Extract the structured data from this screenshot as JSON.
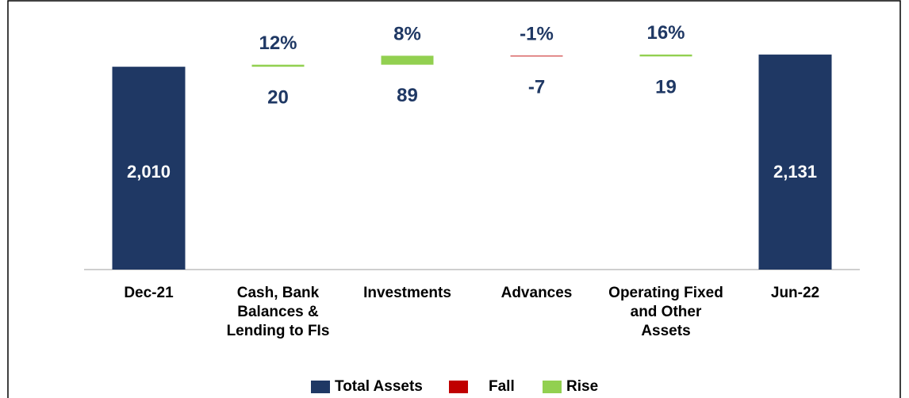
{
  "chart_data": {
    "type": "waterfall",
    "categories": [
      "Dec-21",
      "Cash, Bank Balances & Lending to FIs",
      "Investments",
      "Advances",
      "Operating Fixed and Other Assets",
      "Jun-22"
    ],
    "values": [
      2010,
      20,
      89,
      -7,
      19,
      2131
    ],
    "value_labels": [
      "2,010",
      "20",
      "89",
      "-7",
      "19",
      "2,131"
    ],
    "percent_labels": [
      null,
      "12%",
      "8%",
      "-1%",
      "16%",
      null
    ],
    "is_total": [
      true,
      false,
      false,
      false,
      false,
      true
    ],
    "ylim": [
      0,
      2200
    ],
    "legend": [
      {
        "name": "Total Assets",
        "color": "#1f3864"
      },
      {
        "name": "Fall",
        "color": "#c00000"
      },
      {
        "name": "Rise",
        "color": "#92d050"
      }
    ],
    "legend_position": "bottom"
  }
}
